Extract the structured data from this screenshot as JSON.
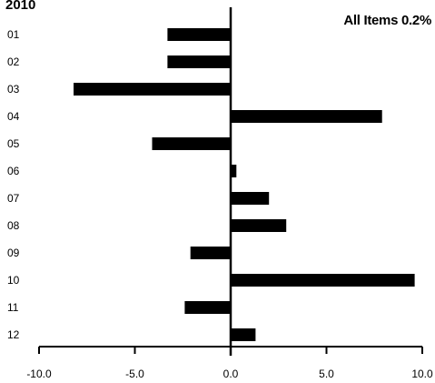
{
  "chart_data": {
    "type": "bar",
    "orientation": "horizontal",
    "title": "2010",
    "subtitle": "All Items 0.2%",
    "categories": [
      "01",
      "02",
      "03",
      "04",
      "05",
      "06",
      "07",
      "08",
      "09",
      "10",
      "11",
      "12"
    ],
    "values": [
      -3.3,
      -3.3,
      -8.2,
      7.9,
      -4.1,
      0.3,
      2.0,
      2.9,
      -2.1,
      9.6,
      -2.4,
      1.3
    ],
    "xlim": [
      -10.0,
      10.0
    ],
    "xticks": [
      "-10.0",
      "-5.0",
      "0.0",
      "5.0",
      "10.0"
    ],
    "xlabel": "",
    "ylabel": "",
    "grid": false,
    "bar_color": "#000000"
  }
}
